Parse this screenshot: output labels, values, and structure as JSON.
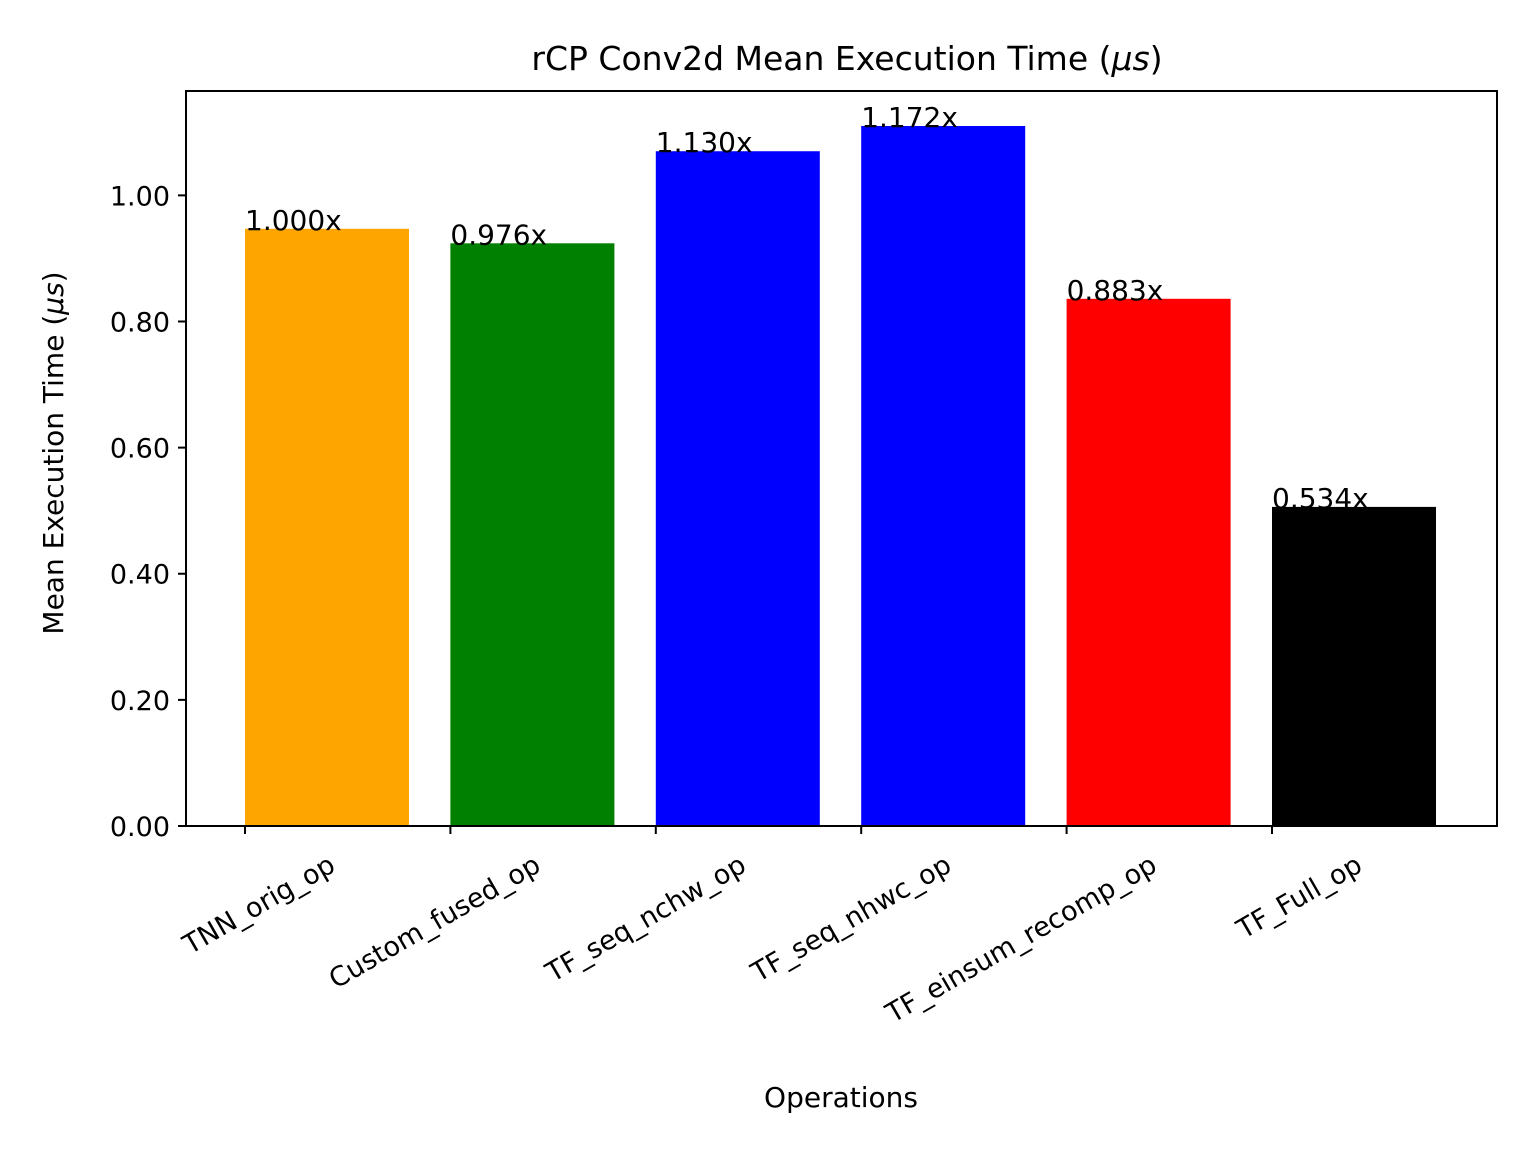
{
  "chart_data": {
    "type": "bar",
    "title_main": "rCP Conv2d Mean Execution Time (",
    "title_unit": "μs",
    "title_close": ")",
    "xlabel": "Operations",
    "ylabel_main": "Mean Execution Time (",
    "ylabel_unit": "μs",
    "ylabel_close": ")",
    "ylim": [
      0,
      1.1655
    ],
    "yticks": [
      0.0,
      0.2,
      0.4,
      0.6,
      0.8,
      1.0
    ],
    "ytick_labels": [
      "0.00",
      "0.20",
      "0.40",
      "0.60",
      "0.80",
      "1.00"
    ],
    "categories": [
      "TNN_orig_op",
      "Custom_fused_op",
      "TF_seq_nchw_op",
      "TF_seq_nhwc_op",
      "TF_einsum_recomp_op",
      "TF_Full_op"
    ],
    "values": [
      0.947,
      0.924,
      1.07,
      1.11,
      0.836,
      0.506
    ],
    "bar_labels": [
      "1.000x",
      "0.976x",
      "1.130x",
      "1.172x",
      "0.883x",
      "0.534x"
    ],
    "colors": [
      "#ffa500",
      "#008000",
      "#0000ff",
      "#0000ff",
      "#ff0000",
      "#000000"
    ],
    "grid": false,
    "legend": false
  }
}
